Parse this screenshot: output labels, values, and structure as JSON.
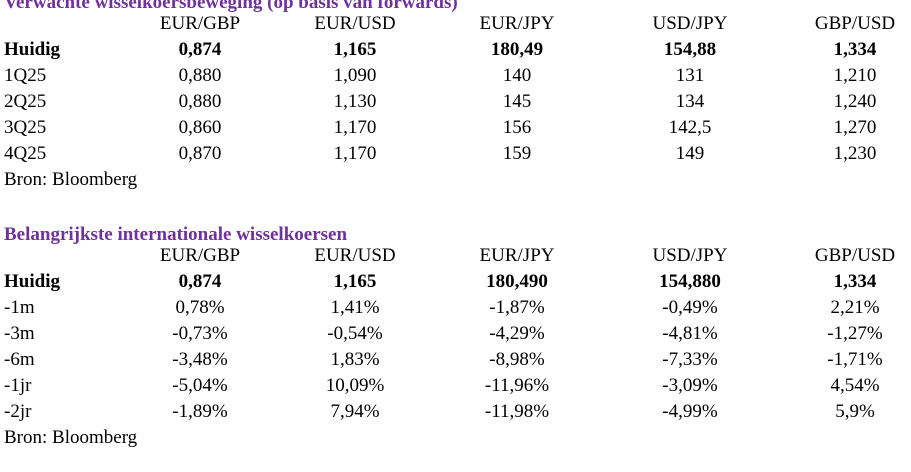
{
  "forecast": {
    "title": "Verwachte wisselkoersbeweging (op basis van forwards)",
    "columns": [
      "EUR/GBP",
      "EUR/USD",
      "EUR/JPY",
      "USD/JPY",
      "GBP/USD"
    ],
    "rows": [
      {
        "label": "Huidig",
        "values": [
          "0,874",
          "1,165",
          "180,49",
          "154,88",
          "1,334"
        ],
        "bold": true
      },
      {
        "label": "1Q25",
        "values": [
          "0,880",
          "1,090",
          "140",
          "131",
          "1,210"
        ]
      },
      {
        "label": "2Q25",
        "values": [
          "0,880",
          "1,130",
          "145",
          "134",
          "1,240"
        ]
      },
      {
        "label": "3Q25",
        "values": [
          "0,860",
          "1,170",
          "156",
          "142,5",
          "1,270"
        ]
      },
      {
        "label": "4Q25",
        "values": [
          "0,870",
          "1,170",
          "159",
          "149",
          "1,230"
        ]
      }
    ],
    "source": "Bron: Bloomberg"
  },
  "rates": {
    "title": "Belangrijkste internationale wisselkoersen",
    "columns": [
      "EUR/GBP",
      "EUR/USD",
      "EUR/JPY",
      "USD/JPY",
      "GBP/USD"
    ],
    "rows": [
      {
        "label": "Huidig",
        "values": [
          "0,874",
          "1,165",
          "180,490",
          "154,880",
          "1,334"
        ],
        "bold": true
      },
      {
        "label": "-1m",
        "values": [
          "0,78%",
          "1,41%",
          "-1,87%",
          "-0,49%",
          "2,21%"
        ]
      },
      {
        "label": "-3m",
        "values": [
          "-0,73%",
          "-0,54%",
          "-4,29%",
          "-4,81%",
          "-1,27%"
        ]
      },
      {
        "label": "-6m",
        "values": [
          "-3,48%",
          "1,83%",
          "-8,98%",
          "-7,33%",
          "-1,71%"
        ]
      },
      {
        "label": "-1jr",
        "values": [
          "-5,04%",
          "10,09%",
          "-11,96%",
          "-3,09%",
          "4,54%"
        ]
      },
      {
        "label": "-2jr",
        "values": [
          "-1,89%",
          "7,94%",
          "-11,98%",
          "-4,99%",
          "5,9%"
        ]
      }
    ],
    "source": "Bron: Bloomberg"
  },
  "colors": {
    "title": "#7030a0",
    "text": "#000000"
  }
}
